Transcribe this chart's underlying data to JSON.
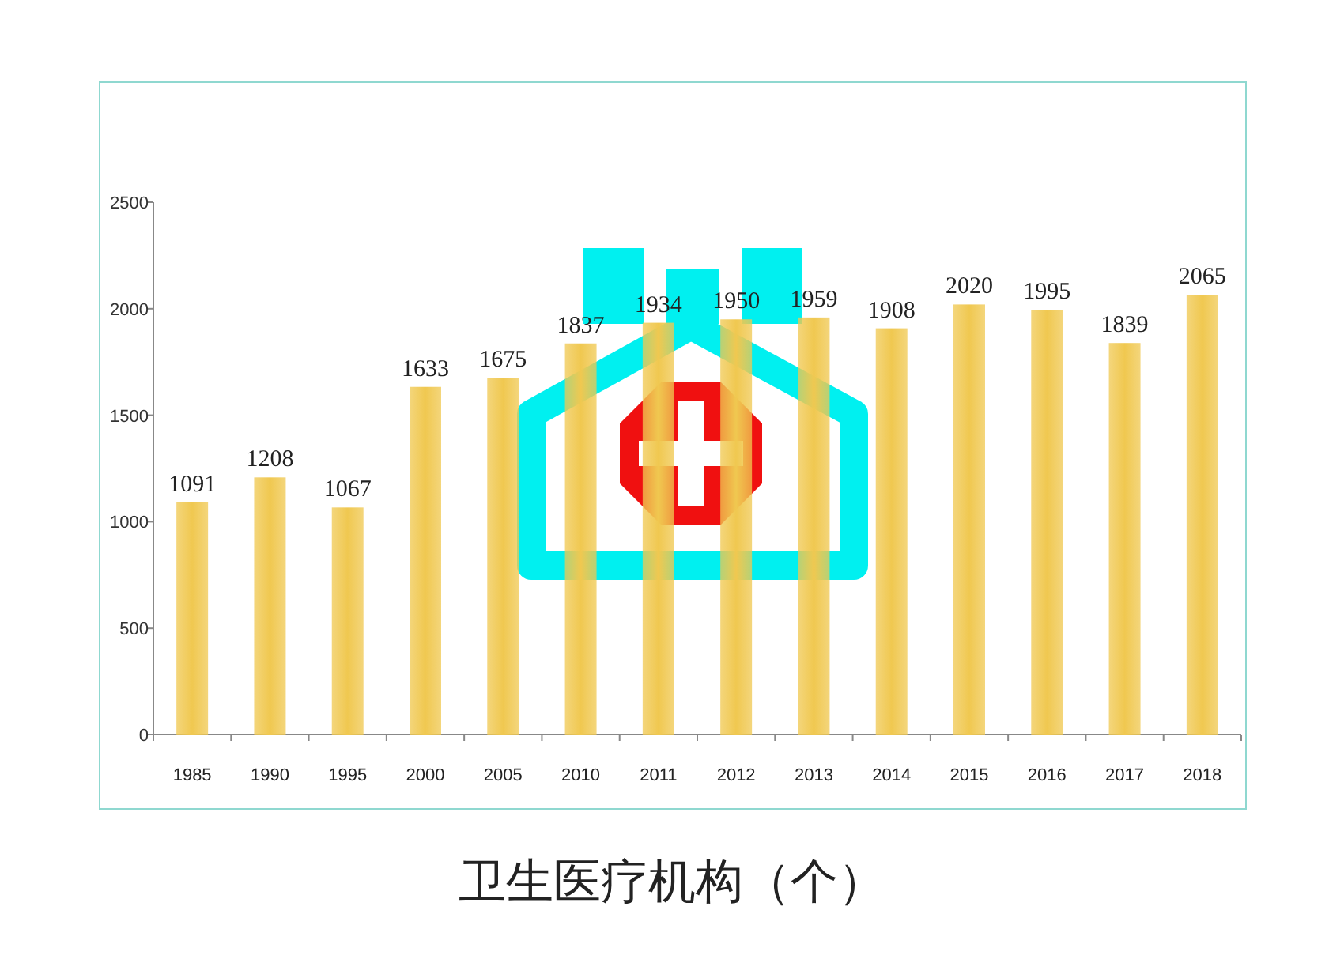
{
  "chart_data": {
    "type": "bar",
    "title": "卫生医疗机构（个）",
    "categories": [
      "1985",
      "1990",
      "1995",
      "2000",
      "2005",
      "2010",
      "2011",
      "2012",
      "2013",
      "2014",
      "2015",
      "2016",
      "2017",
      "2018"
    ],
    "values": [
      1091,
      1208,
      1067,
      1633,
      1675,
      1837,
      1934,
      1950,
      1959,
      1908,
      2020,
      1995,
      1839,
      2065
    ],
    "color": "#f0c850",
    "ylim": [
      0,
      2500
    ],
    "yticks": [
      0,
      500,
      1000,
      1500,
      2000,
      2500
    ],
    "data_labels": true
  }
}
